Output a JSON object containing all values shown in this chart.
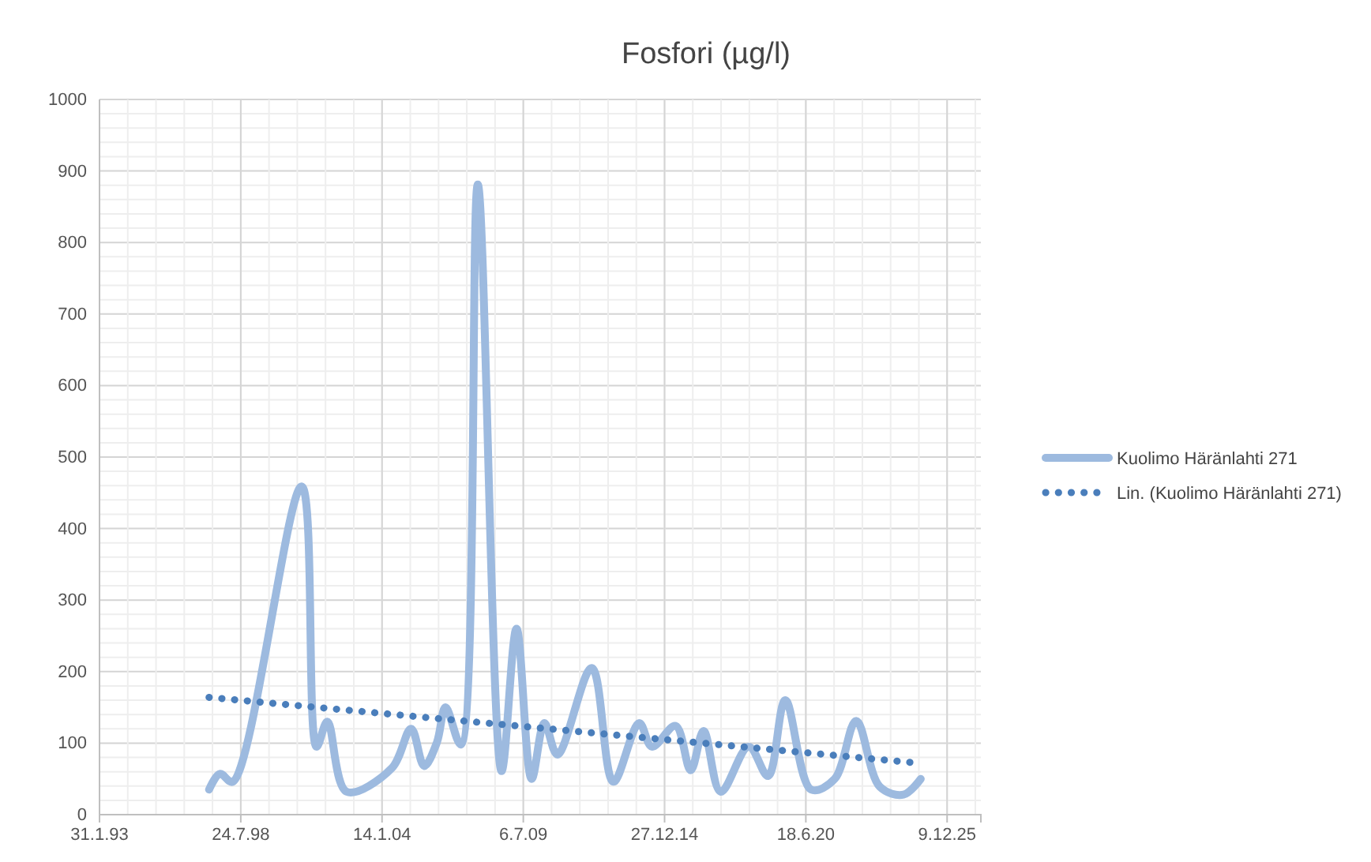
{
  "chart_data": {
    "type": "line",
    "title": "Fosfori (µg/l)",
    "xlim": [
      "1993-01-31",
      "2027-04-01"
    ],
    "xticks": [
      {
        "value": "1993-01-31",
        "label": "31.1.93"
      },
      {
        "value": "1998-07-24",
        "label": "24.7.98"
      },
      {
        "value": "2004-01-14",
        "label": "14.1.04"
      },
      {
        "value": "2009-07-06",
        "label": "6.7.09"
      },
      {
        "value": "2014-12-27",
        "label": "27.12.14"
      },
      {
        "value": "2020-06-18",
        "label": "18.6.20"
      },
      {
        "value": "2025-12-09",
        "label": "9.12.25"
      }
    ],
    "ylim": [
      0,
      1000
    ],
    "yticks": [
      0,
      100,
      200,
      300,
      400,
      500,
      600,
      700,
      800,
      900,
      1000
    ],
    "grid": true,
    "legend": "right",
    "series": [
      {
        "name": "Kuolimo Häränlahti 271",
        "color": "#9dbadf",
        "line_style": "solid",
        "x": [
          "1997-05",
          "1997-10",
          "1998-04",
          "2000-12",
          "2001-07",
          "2001-12",
          "2002-09",
          "2004-06",
          "2005-03",
          "2005-09",
          "2006-03",
          "2006-07",
          "2007-02",
          "2007-10",
          "2008-09",
          "2009-04",
          "2009-11",
          "2010-05",
          "2010-11",
          "2012-03",
          "2013-01",
          "2014-01",
          "2014-07",
          "2015-06",
          "2016-01",
          "2016-07",
          "2017-03",
          "2018-04",
          "2019-01",
          "2019-09",
          "2020-09",
          "2021-08",
          "2022-06",
          "2023-05",
          "2024-04",
          "2024-12"
        ],
        "values": [
          35,
          57,
          46,
          459,
          95,
          130,
          32,
          65,
          120,
          68,
          101,
          150,
          98,
          881,
          61,
          260,
          50,
          128,
          84,
          205,
          46,
          128,
          95,
          124,
          62,
          117,
          32,
          95,
          54,
          160,
          35,
          50,
          131,
          39,
          28,
          50
        ]
      },
      {
        "name": "Lin. (Kuolimo Häränlahti 271)",
        "color": "#4a7ebb",
        "line_style": "dotted",
        "x": [
          "1997-05",
          "2024-11"
        ],
        "values": [
          164,
          72
        ]
      }
    ]
  }
}
